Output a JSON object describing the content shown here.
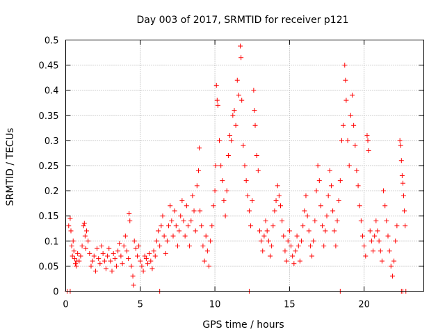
{
  "chart_data": {
    "type": "scatter",
    "title": "Day 003 of 2017, SRMTID for receiver p121",
    "xlabel": "GPS time / hours",
    "ylabel": "SRMTID / TECUs",
    "xlim": [
      0,
      24
    ],
    "ylim": [
      0,
      0.5
    ],
    "xticks": [
      0,
      5,
      10,
      15,
      20
    ],
    "yticks": [
      0,
      0.05,
      0.1,
      0.15,
      0.2,
      0.25,
      0.3,
      0.35,
      0.4,
      0.45,
      0.5
    ],
    "xtick_labels": [
      "0",
      "5",
      "10",
      "15",
      "20"
    ],
    "ytick_labels": [
      "0",
      "0.05",
      "0.1",
      "0.15",
      "0.2",
      "0.25",
      "0.3",
      "0.35",
      "0.4",
      "0.45",
      "0.5"
    ],
    "grid": true,
    "marker": "+",
    "color": "#ff0000",
    "series": [
      {
        "name": "SRMTID",
        "points": [
          [
            0.1,
            0.0
          ],
          [
            0.3,
            0.0
          ],
          [
            6.3,
            0.0
          ],
          [
            12.3,
            0.0
          ],
          [
            18.4,
            0.0
          ],
          [
            22.5,
            0.0
          ],
          [
            22.6,
            0.0
          ],
          [
            22.8,
            0.0
          ],
          [
            0.2,
            0.13
          ],
          [
            0.3,
            0.145
          ],
          [
            0.35,
            0.12
          ],
          [
            0.4,
            0.09
          ],
          [
            0.45,
            0.07
          ],
          [
            0.5,
            0.1
          ],
          [
            0.55,
            0.08
          ],
          [
            0.6,
            0.065
          ],
          [
            0.65,
            0.055
          ],
          [
            0.7,
            0.05
          ],
          [
            0.75,
            0.06
          ],
          [
            0.8,
            0.075
          ],
          [
            0.9,
            0.06
          ],
          [
            1.0,
            0.07
          ],
          [
            1.1,
            0.09
          ],
          [
            1.2,
            0.13
          ],
          [
            1.25,
            0.135
          ],
          [
            1.3,
            0.11
          ],
          [
            1.35,
            0.085
          ],
          [
            1.4,
            0.12
          ],
          [
            1.5,
            0.1
          ],
          [
            1.6,
            0.075
          ],
          [
            1.7,
            0.05
          ],
          [
            1.8,
            0.06
          ],
          [
            1.9,
            0.07
          ],
          [
            2.0,
            0.04
          ],
          [
            2.1,
            0.085
          ],
          [
            2.2,
            0.065
          ],
          [
            2.3,
            0.055
          ],
          [
            2.4,
            0.09
          ],
          [
            2.5,
            0.075
          ],
          [
            2.6,
            0.06
          ],
          [
            2.7,
            0.045
          ],
          [
            2.8,
            0.07
          ],
          [
            2.9,
            0.085
          ],
          [
            3.0,
            0.06
          ],
          [
            3.1,
            0.04
          ],
          [
            3.2,
            0.075
          ],
          [
            3.3,
            0.065
          ],
          [
            3.4,
            0.05
          ],
          [
            3.5,
            0.08
          ],
          [
            3.6,
            0.095
          ],
          [
            3.7,
            0.07
          ],
          [
            3.8,
            0.055
          ],
          [
            3.9,
            0.09
          ],
          [
            4.0,
            0.11
          ],
          [
            4.1,
            0.08
          ],
          [
            4.2,
            0.065
          ],
          [
            4.25,
            0.155
          ],
          [
            4.3,
            0.14
          ],
          [
            4.4,
            0.05
          ],
          [
            4.5,
            0.03
          ],
          [
            4.55,
            0.012
          ],
          [
            4.6,
            0.1
          ],
          [
            4.7,
            0.085
          ],
          [
            4.8,
            0.07
          ],
          [
            4.9,
            0.09
          ],
          [
            5.0,
            0.06
          ],
          [
            5.1,
            0.05
          ],
          [
            5.2,
            0.04
          ],
          [
            5.3,
            0.07
          ],
          [
            5.4,
            0.065
          ],
          [
            5.5,
            0.055
          ],
          [
            5.6,
            0.075
          ],
          [
            5.7,
            0.06
          ],
          [
            5.8,
            0.045
          ],
          [
            5.9,
            0.08
          ],
          [
            6.0,
            0.07
          ],
          [
            6.1,
            0.1
          ],
          [
            6.2,
            0.12
          ],
          [
            6.3,
            0.09
          ],
          [
            6.4,
            0.13
          ],
          [
            6.5,
            0.15
          ],
          [
            6.6,
            0.11
          ],
          [
            6.7,
            0.075
          ],
          [
            6.8,
            0.1
          ],
          [
            6.9,
            0.13
          ],
          [
            7.0,
            0.17
          ],
          [
            7.1,
            0.14
          ],
          [
            7.2,
            0.11
          ],
          [
            7.3,
            0.16
          ],
          [
            7.4,
            0.13
          ],
          [
            7.5,
            0.09
          ],
          [
            7.6,
            0.12
          ],
          [
            7.7,
            0.15
          ],
          [
            7.8,
            0.18
          ],
          [
            7.9,
            0.14
          ],
          [
            8.0,
            0.11
          ],
          [
            8.1,
            0.17
          ],
          [
            8.2,
            0.13
          ],
          [
            8.3,
            0.09
          ],
          [
            8.4,
            0.14
          ],
          [
            8.5,
            0.19
          ],
          [
            8.6,
            0.16
          ],
          [
            8.7,
            0.12
          ],
          [
            8.8,
            0.21
          ],
          [
            8.9,
            0.24
          ],
          [
            8.95,
            0.285
          ],
          [
            9.0,
            0.16
          ],
          [
            9.1,
            0.13
          ],
          [
            9.2,
            0.09
          ],
          [
            9.3,
            0.06
          ],
          [
            9.4,
            0.11
          ],
          [
            9.5,
            0.08
          ],
          [
            9.6,
            0.05
          ],
          [
            9.7,
            0.1
          ],
          [
            9.8,
            0.13
          ],
          [
            9.9,
            0.17
          ],
          [
            10.0,
            0.2
          ],
          [
            10.05,
            0.25
          ],
          [
            10.1,
            0.41
          ],
          [
            10.15,
            0.38
          ],
          [
            10.2,
            0.37
          ],
          [
            10.3,
            0.3
          ],
          [
            10.4,
            0.25
          ],
          [
            10.5,
            0.22
          ],
          [
            10.6,
            0.18
          ],
          [
            10.7,
            0.15
          ],
          [
            10.8,
            0.2
          ],
          [
            10.9,
            0.27
          ],
          [
            11.0,
            0.31
          ],
          [
            11.1,
            0.3
          ],
          [
            11.2,
            0.35
          ],
          [
            11.3,
            0.36
          ],
          [
            11.4,
            0.33
          ],
          [
            11.5,
            0.42
          ],
          [
            11.6,
            0.39
          ],
          [
            11.7,
            0.488
          ],
          [
            11.75,
            0.465
          ],
          [
            11.8,
            0.38
          ],
          [
            11.9,
            0.29
          ],
          [
            12.0,
            0.25
          ],
          [
            12.1,
            0.22
          ],
          [
            12.2,
            0.19
          ],
          [
            12.3,
            0.16
          ],
          [
            12.4,
            0.13
          ],
          [
            12.5,
            0.18
          ],
          [
            12.6,
            0.4
          ],
          [
            12.65,
            0.36
          ],
          [
            12.7,
            0.33
          ],
          [
            12.8,
            0.27
          ],
          [
            12.9,
            0.24
          ],
          [
            13.0,
            0.12
          ],
          [
            13.1,
            0.1
          ],
          [
            13.2,
            0.08
          ],
          [
            13.3,
            0.11
          ],
          [
            13.4,
            0.14
          ],
          [
            13.5,
            0.12
          ],
          [
            13.6,
            0.1
          ],
          [
            13.7,
            0.07
          ],
          [
            13.8,
            0.09
          ],
          [
            13.9,
            0.13
          ],
          [
            14.0,
            0.16
          ],
          [
            14.1,
            0.18
          ],
          [
            14.2,
            0.21
          ],
          [
            14.3,
            0.19
          ],
          [
            14.4,
            0.17
          ],
          [
            14.5,
            0.14
          ],
          [
            14.6,
            0.11
          ],
          [
            14.7,
            0.08
          ],
          [
            14.8,
            0.06
          ],
          [
            14.9,
            0.1
          ],
          [
            15.0,
            0.12
          ],
          [
            15.1,
            0.09
          ],
          [
            15.2,
            0.07
          ],
          [
            15.3,
            0.055
          ],
          [
            15.4,
            0.08
          ],
          [
            15.5,
            0.11
          ],
          [
            15.6,
            0.09
          ],
          [
            15.7,
            0.06
          ],
          [
            15.8,
            0.1
          ],
          [
            15.9,
            0.13
          ],
          [
            16.0,
            0.16
          ],
          [
            16.1,
            0.19
          ],
          [
            16.2,
            0.15
          ],
          [
            16.3,
            0.12
          ],
          [
            16.4,
            0.09
          ],
          [
            16.5,
            0.07
          ],
          [
            16.6,
            0.1
          ],
          [
            16.7,
            0.14
          ],
          [
            16.8,
            0.2
          ],
          [
            16.9,
            0.25
          ],
          [
            17.0,
            0.22
          ],
          [
            17.1,
            0.17
          ],
          [
            17.2,
            0.13
          ],
          [
            17.3,
            0.09
          ],
          [
            17.4,
            0.12
          ],
          [
            17.5,
            0.15
          ],
          [
            17.6,
            0.19
          ],
          [
            17.7,
            0.24
          ],
          [
            17.8,
            0.21
          ],
          [
            17.9,
            0.16
          ],
          [
            18.0,
            0.12
          ],
          [
            18.1,
            0.09
          ],
          [
            18.2,
            0.14
          ],
          [
            18.3,
            0.18
          ],
          [
            18.4,
            0.22
          ],
          [
            18.5,
            0.3
          ],
          [
            18.6,
            0.33
          ],
          [
            18.7,
            0.45
          ],
          [
            18.75,
            0.42
          ],
          [
            18.8,
            0.38
          ],
          [
            18.9,
            0.3
          ],
          [
            19.0,
            0.25
          ],
          [
            19.1,
            0.35
          ],
          [
            19.2,
            0.39
          ],
          [
            19.3,
            0.33
          ],
          [
            19.4,
            0.29
          ],
          [
            19.5,
            0.24
          ],
          [
            19.6,
            0.21
          ],
          [
            19.7,
            0.17
          ],
          [
            19.8,
            0.14
          ],
          [
            19.9,
            0.11
          ],
          [
            20.0,
            0.09
          ],
          [
            20.1,
            0.07
          ],
          [
            20.2,
            0.31
          ],
          [
            20.25,
            0.3
          ],
          [
            20.3,
            0.28
          ],
          [
            20.4,
            0.12
          ],
          [
            20.5,
            0.1
          ],
          [
            20.6,
            0.08
          ],
          [
            20.7,
            0.11
          ],
          [
            20.8,
            0.14
          ],
          [
            20.9,
            0.12
          ],
          [
            21.0,
            0.1
          ],
          [
            21.1,
            0.08
          ],
          [
            21.2,
            0.06
          ],
          [
            21.3,
            0.2
          ],
          [
            21.4,
            0.17
          ],
          [
            21.5,
            0.14
          ],
          [
            21.6,
            0.11
          ],
          [
            21.7,
            0.08
          ],
          [
            21.8,
            0.05
          ],
          [
            21.9,
            0.03
          ],
          [
            22.0,
            0.06
          ],
          [
            22.1,
            0.1
          ],
          [
            22.2,
            0.13
          ],
          [
            22.4,
            0.3
          ],
          [
            22.45,
            0.29
          ],
          [
            22.5,
            0.26
          ],
          [
            22.55,
            0.23
          ],
          [
            22.6,
            0.215
          ],
          [
            22.65,
            0.19
          ],
          [
            22.7,
            0.16
          ],
          [
            22.75,
            0.13
          ]
        ]
      }
    ]
  }
}
